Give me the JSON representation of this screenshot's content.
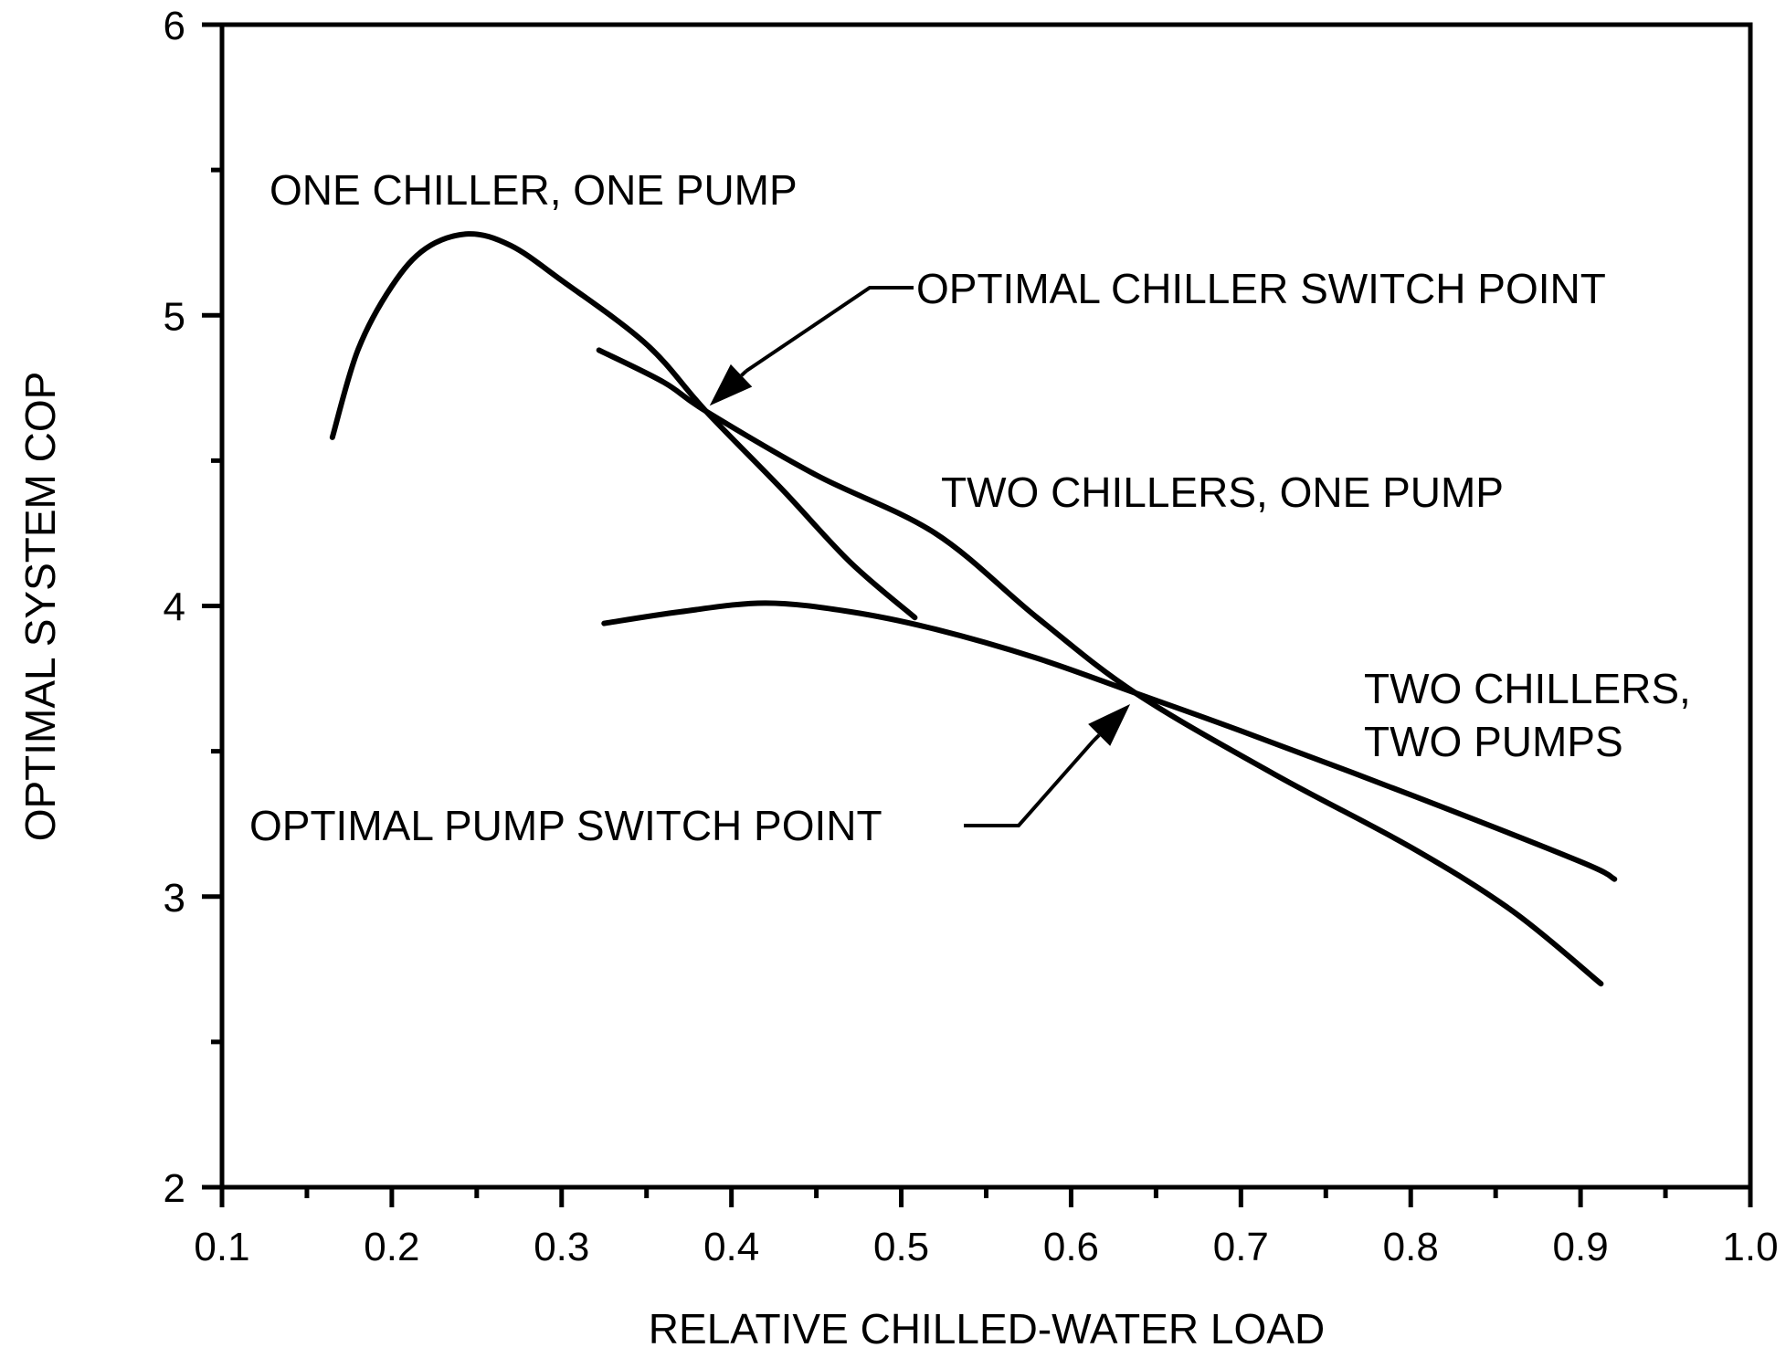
{
  "chart_data": {
    "type": "line",
    "title": "",
    "xlabel": "RELATIVE CHILLED-WATER LOAD",
    "ylabel": "OPTIMAL SYSTEM COP",
    "xlim": [
      0.1,
      1.0
    ],
    "ylim": [
      2,
      6
    ],
    "x_tick_labels": [
      "0.1",
      "0.2",
      "0.3",
      "0.4",
      "0.5",
      "0.6",
      "0.7",
      "0.8",
      "0.9",
      "1.0"
    ],
    "y_tick_labels": [
      "2",
      "3",
      "4",
      "5",
      "6"
    ],
    "grid": false,
    "legend": "none",
    "series": [
      {
        "label": "ONE CHILLER, ONE PUMP",
        "points": [
          [
            0.165,
            4.58
          ],
          [
            0.18,
            4.88
          ],
          [
            0.2,
            5.1
          ],
          [
            0.22,
            5.23
          ],
          [
            0.245,
            5.28
          ],
          [
            0.27,
            5.24
          ],
          [
            0.3,
            5.12
          ],
          [
            0.35,
            4.9
          ],
          [
            0.385,
            4.67
          ],
          [
            0.43,
            4.4
          ],
          [
            0.47,
            4.15
          ],
          [
            0.508,
            3.96
          ]
        ]
      },
      {
        "label": "TWO CHILLERS, ONE PUMP",
        "points": [
          [
            0.322,
            4.88
          ],
          [
            0.36,
            4.77
          ],
          [
            0.385,
            4.67
          ],
          [
            0.45,
            4.45
          ],
          [
            0.52,
            4.25
          ],
          [
            0.58,
            3.96
          ],
          [
            0.638,
            3.7
          ],
          [
            0.72,
            3.42
          ],
          [
            0.8,
            3.17
          ],
          [
            0.86,
            2.95
          ],
          [
            0.912,
            2.7
          ]
        ]
      },
      {
        "label": "TWO CHILLERS, TWO PUMPS",
        "points": [
          [
            0.325,
            3.94
          ],
          [
            0.37,
            3.98
          ],
          [
            0.42,
            4.01
          ],
          [
            0.47,
            3.98
          ],
          [
            0.52,
            3.92
          ],
          [
            0.58,
            3.82
          ],
          [
            0.638,
            3.7
          ],
          [
            0.7,
            3.57
          ],
          [
            0.8,
            3.35
          ],
          [
            0.9,
            3.12
          ],
          [
            0.92,
            3.06
          ]
        ]
      }
    ],
    "annotations": [
      {
        "text": "ONE CHILLER, ONE PUMP"
      },
      {
        "text": "OPTIMAL CHILLER SWITCH POINT",
        "points_to": [
          0.385,
          4.67
        ]
      },
      {
        "text": "TWO CHILLERS, ONE PUMP"
      },
      {
        "text": "TWO CHILLERS,",
        "text2": "TWO PUMPS"
      },
      {
        "text": "OPTIMAL PUMP SWITCH POINT",
        "points_to": [
          0.638,
          3.7
        ]
      }
    ]
  }
}
